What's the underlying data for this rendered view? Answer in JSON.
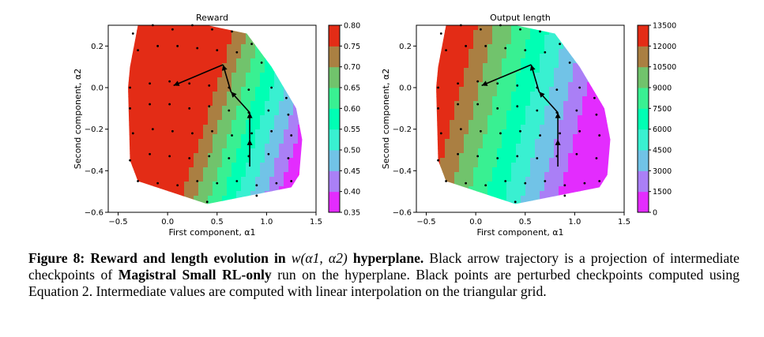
{
  "figure": {
    "caption": {
      "label": "Figure 8:",
      "title_pre": "Reward and length evolution in ",
      "title_math": "w(α1, α2)",
      "title_post": " hyperplane.",
      "s1": " Black arrow trajectory is a projection of intermediate checkpoints of ",
      "run_name": "Magistral Small RL-only",
      "s2": " run on the hyperplane. Black points are perturbed checkpoints computed using Equation 2. Intermediate values are computed with linear interpolation on the triangular grid."
    }
  },
  "chart_data": [
    {
      "type": "contour",
      "title": "Reward",
      "xlabel": "First component, α1",
      "ylabel": "Second component, α2",
      "xlim": [
        -0.6,
        1.5
      ],
      "ylim": [
        -0.6,
        0.3
      ],
      "xticks": [
        "−0.5",
        "0.0",
        "0.5",
        "1.0",
        "1.5"
      ],
      "xtick_values": [
        -0.5,
        0.0,
        0.5,
        1.0,
        1.5
      ],
      "yticks": [
        "−0.6",
        "−0.4",
        "−0.2",
        "0.0",
        "0.2"
      ],
      "ytick_values": [
        -0.6,
        -0.4,
        -0.2,
        0.0,
        0.2
      ],
      "colorbar": {
        "ticks": [
          "0.35",
          "0.40",
          "0.45",
          "0.50",
          "0.55",
          "0.60",
          "0.65",
          "0.70",
          "0.75",
          "0.80"
        ],
        "tick_values": [
          0.35,
          0.4,
          0.45,
          0.5,
          0.55,
          0.6,
          0.65,
          0.7,
          0.75,
          0.8
        ],
        "range": [
          0.35,
          0.8
        ],
        "colormap": "rainbow"
      },
      "value_field": {
        "axis": "along_ridge",
        "max_value": 0.795,
        "min_value": 0.36
      },
      "trajectory": [
        [
          0.83,
          -0.38
        ],
        [
          0.83,
          -0.25
        ],
        [
          0.83,
          -0.12
        ],
        [
          0.64,
          -0.02
        ],
        [
          0.56,
          0.11
        ],
        [
          0.06,
          0.01
        ]
      ],
      "points": [
        [
          -0.35,
          0.26
        ],
        [
          -0.15,
          0.3
        ],
        [
          0.05,
          0.28
        ],
        [
          0.25,
          0.3
        ],
        [
          0.45,
          0.28
        ],
        [
          0.65,
          0.27
        ],
        [
          0.85,
          0.21
        ],
        [
          -0.3,
          0.18
        ],
        [
          -0.1,
          0.2
        ],
        [
          0.1,
          0.2
        ],
        [
          0.3,
          0.19
        ],
        [
          0.5,
          0.18
        ],
        [
          0.7,
          0.17
        ],
        [
          0.95,
          0.12
        ],
        [
          -0.38,
          0.0
        ],
        [
          -0.18,
          0.02
        ],
        [
          0.02,
          0.03
        ],
        [
          0.22,
          0.02
        ],
        [
          0.42,
          0.01
        ],
        [
          0.62,
          0.0
        ],
        [
          0.82,
          -0.01
        ],
        [
          1.05,
          0.0
        ],
        [
          1.2,
          -0.05
        ],
        [
          -0.38,
          -0.1
        ],
        [
          -0.18,
          -0.08
        ],
        [
          0.02,
          -0.08
        ],
        [
          0.22,
          -0.1
        ],
        [
          0.42,
          -0.09
        ],
        [
          0.62,
          -0.11
        ],
        [
          0.82,
          -0.12
        ],
        [
          1.02,
          -0.11
        ],
        [
          1.22,
          -0.13
        ],
        [
          -0.35,
          -0.22
        ],
        [
          -0.15,
          -0.2
        ],
        [
          0.05,
          -0.21
        ],
        [
          0.25,
          -0.22
        ],
        [
          0.45,
          -0.21
        ],
        [
          0.65,
          -0.23
        ],
        [
          0.85,
          -0.22
        ],
        [
          1.05,
          -0.21
        ],
        [
          1.25,
          -0.23
        ],
        [
          -0.38,
          -0.35
        ],
        [
          -0.18,
          -0.32
        ],
        [
          0.02,
          -0.33
        ],
        [
          0.22,
          -0.34
        ],
        [
          0.42,
          -0.33
        ],
        [
          0.62,
          -0.34
        ],
        [
          0.82,
          -0.33
        ],
        [
          1.02,
          -0.32
        ],
        [
          1.22,
          -0.34
        ],
        [
          -0.3,
          -0.45
        ],
        [
          -0.1,
          -0.46
        ],
        [
          0.1,
          -0.47
        ],
        [
          0.3,
          -0.45
        ],
        [
          0.5,
          -0.46
        ],
        [
          0.7,
          -0.45
        ],
        [
          0.9,
          -0.47
        ],
        [
          1.1,
          -0.46
        ],
        [
          1.25,
          -0.45
        ],
        [
          0.4,
          -0.55
        ],
        [
          0.9,
          -0.52
        ]
      ]
    },
    {
      "type": "contour",
      "title": "Output length",
      "xlabel": "First component, α1",
      "ylabel": "Second component, α2",
      "xlim": [
        -0.6,
        1.5
      ],
      "ylim": [
        -0.6,
        0.3
      ],
      "xticks": [
        "−0.5",
        "0.0",
        "0.5",
        "1.0",
        "1.5"
      ],
      "xtick_values": [
        -0.5,
        0.0,
        0.5,
        1.0,
        1.5
      ],
      "yticks": [
        "−0.6",
        "−0.4",
        "−0.2",
        "0.0",
        "0.2"
      ],
      "ytick_values": [
        -0.6,
        -0.4,
        -0.2,
        0.0,
        0.2
      ],
      "colorbar": {
        "ticks": [
          "0",
          "1500",
          "3000",
          "4500",
          "6000",
          "7500",
          "9000",
          "10500",
          "12000",
          "13500"
        ],
        "tick_values": [
          0,
          1500,
          3000,
          4500,
          6000,
          7500,
          9000,
          10500,
          12000,
          13500
        ],
        "range": [
          0,
          13500
        ],
        "colormap": "rainbow"
      },
      "value_field": {
        "axis": "left_to_right",
        "max_value": 12800,
        "min_value": 500
      },
      "trajectory": [
        [
          0.83,
          -0.38
        ],
        [
          0.83,
          -0.25
        ],
        [
          0.83,
          -0.12
        ],
        [
          0.64,
          -0.02
        ],
        [
          0.56,
          0.11
        ],
        [
          0.06,
          0.01
        ]
      ],
      "points": [
        [
          -0.35,
          0.26
        ],
        [
          -0.15,
          0.3
        ],
        [
          0.05,
          0.28
        ],
        [
          0.25,
          0.3
        ],
        [
          0.45,
          0.28
        ],
        [
          0.65,
          0.27
        ],
        [
          0.85,
          0.21
        ],
        [
          -0.3,
          0.18
        ],
        [
          -0.1,
          0.2
        ],
        [
          0.1,
          0.2
        ],
        [
          0.3,
          0.19
        ],
        [
          0.5,
          0.18
        ],
        [
          0.7,
          0.17
        ],
        [
          0.95,
          0.12
        ],
        [
          -0.38,
          0.0
        ],
        [
          -0.18,
          0.02
        ],
        [
          0.02,
          0.03
        ],
        [
          0.22,
          0.02
        ],
        [
          0.42,
          0.01
        ],
        [
          0.62,
          0.0
        ],
        [
          0.82,
          -0.01
        ],
        [
          1.05,
          0.0
        ],
        [
          1.2,
          -0.05
        ],
        [
          -0.38,
          -0.1
        ],
        [
          -0.18,
          -0.08
        ],
        [
          0.02,
          -0.08
        ],
        [
          0.22,
          -0.1
        ],
        [
          0.42,
          -0.09
        ],
        [
          0.62,
          -0.11
        ],
        [
          0.82,
          -0.12
        ],
        [
          1.02,
          -0.11
        ],
        [
          1.22,
          -0.13
        ],
        [
          -0.35,
          -0.22
        ],
        [
          -0.15,
          -0.2
        ],
        [
          0.05,
          -0.21
        ],
        [
          0.25,
          -0.22
        ],
        [
          0.45,
          -0.21
        ],
        [
          0.65,
          -0.23
        ],
        [
          0.85,
          -0.22
        ],
        [
          1.05,
          -0.21
        ],
        [
          1.25,
          -0.23
        ],
        [
          -0.38,
          -0.35
        ],
        [
          -0.18,
          -0.32
        ],
        [
          0.02,
          -0.33
        ],
        [
          0.22,
          -0.34
        ],
        [
          0.42,
          -0.33
        ],
        [
          0.62,
          -0.34
        ],
        [
          0.82,
          -0.33
        ],
        [
          1.02,
          -0.32
        ],
        [
          1.22,
          -0.34
        ],
        [
          -0.3,
          -0.45
        ],
        [
          -0.1,
          -0.46
        ],
        [
          0.1,
          -0.47
        ],
        [
          0.3,
          -0.45
        ],
        [
          0.5,
          -0.46
        ],
        [
          0.7,
          -0.45
        ],
        [
          0.9,
          -0.47
        ],
        [
          1.1,
          -0.46
        ],
        [
          1.25,
          -0.45
        ],
        [
          0.4,
          -0.55
        ],
        [
          0.9,
          -0.52
        ]
      ]
    }
  ]
}
